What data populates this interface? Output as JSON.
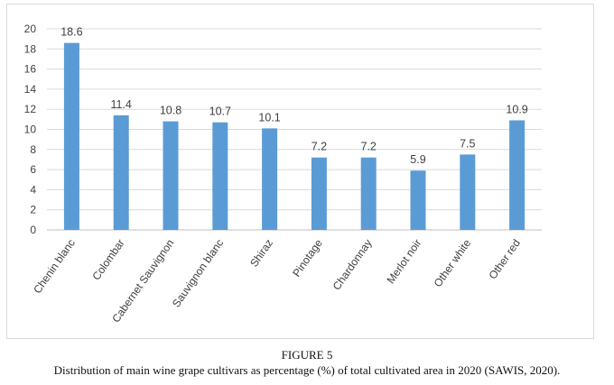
{
  "figure": {
    "label": "FIGURE 5",
    "caption": "Distribution of main wine grape cultivars as percentage (%) of total cultivated area in 2020 (SAWIS, 2020)."
  },
  "chart_data": {
    "type": "bar",
    "categories": [
      "Chenin blanc",
      "Colombar",
      "Cabernet Sauvignon",
      "Sauvignon blanc",
      "Shiraz",
      "Pinotage",
      "Chardonnay",
      "Merlot noir",
      "Other white",
      "Other red"
    ],
    "values": [
      18.6,
      11.4,
      10.8,
      10.7,
      10.1,
      7.2,
      7.2,
      5.9,
      7.5,
      10.9
    ],
    "data_labels": [
      "18.6",
      "11.4",
      "10.8",
      "10.7",
      "10.1",
      "7.2",
      "7.2",
      "5.9",
      "7.5",
      "10.9"
    ],
    "yticks": [
      0,
      2,
      4,
      6,
      8,
      10,
      12,
      14,
      16,
      18,
      20
    ],
    "ylim": [
      0,
      20
    ],
    "grid": true,
    "legend": "none",
    "colors": {
      "bar": "#5b9bd5",
      "grid": "#d9d9d9",
      "text": "#404040"
    }
  }
}
